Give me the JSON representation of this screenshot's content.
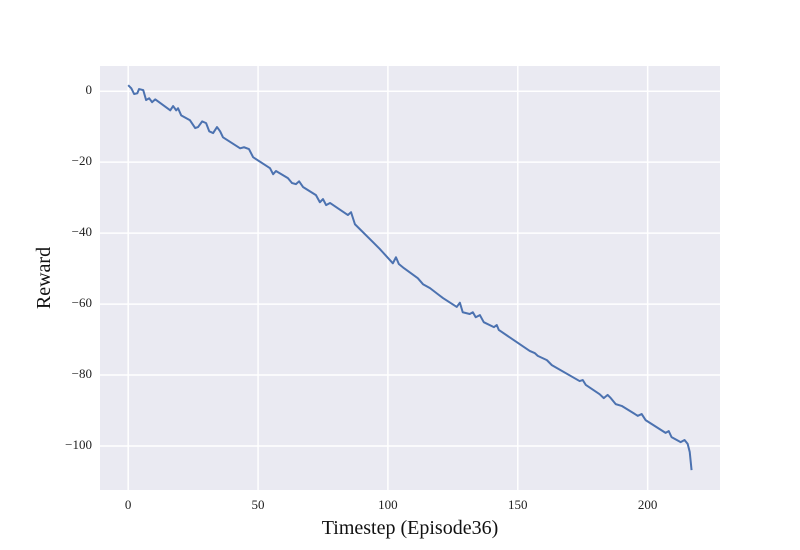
{
  "chart_data": {
    "type": "line",
    "xlabel": "Timestep (Episode36)",
    "ylabel": "Reward",
    "x": [
      0,
      1.2,
      2.3,
      3.5,
      4.2,
      5.8,
      6.9,
      8.1,
      9.2,
      10.4,
      16.2,
      17.3,
      18.5,
      19.2,
      20.4,
      23.8,
      25.8,
      26.9,
      28.5,
      30,
      31.2,
      32.7,
      34.2,
      35.4,
      36.5,
      43.1,
      44.6,
      46.5,
      48.1,
      54.6,
      55.8,
      56.9,
      61.5,
      63.1,
      64.6,
      65.8,
      67.3,
      72.3,
      73.8,
      75,
      76.2,
      77.7,
      84.6,
      85.8,
      87.3,
      94.6,
      96.9,
      101.9,
      103.1,
      104.2,
      106.2,
      111.5,
      113.5,
      116.2,
      119.2,
      121.2,
      126.5,
      127.7,
      128.8,
      131.5,
      132.7,
      133.8,
      135.4,
      136.9,
      140.8,
      141.9,
      142.7,
      154.6,
      156.5,
      157.7,
      161.2,
      163.1,
      173.8,
      175,
      176.2,
      181.5,
      183.1,
      184.6,
      185.8,
      187.7,
      190,
      196.2,
      197.7,
      199.2,
      206.9,
      208.1,
      209.2,
      212.7,
      214.2,
      215.4,
      216.2,
      216.9
    ],
    "series": [
      {
        "name": "Reward",
        "color": "#4c72b0",
        "values": [
          1.7,
          0.8,
          -0.8,
          -0.6,
          0.6,
          0.3,
          -2.5,
          -2,
          -3.1,
          -2.3,
          -5.4,
          -4.2,
          -5.4,
          -4.8,
          -6.8,
          -8.2,
          -10.4,
          -10.1,
          -8.5,
          -9,
          -11.3,
          -11.8,
          -10.1,
          -11.3,
          -13,
          -16.1,
          -15.8,
          -16.3,
          -18.6,
          -21.7,
          -23.4,
          -22.5,
          -24.5,
          -25.9,
          -26.2,
          -25.4,
          -27,
          -29.3,
          -31.3,
          -30.4,
          -32.1,
          -31.5,
          -34.9,
          -34.1,
          -37.5,
          -42.8,
          -44.5,
          -48.5,
          -46.8,
          -48.7,
          -49.9,
          -52.7,
          -54.4,
          -55.5,
          -57.2,
          -58.3,
          -60.8,
          -59.6,
          -62.3,
          -62.8,
          -62.3,
          -63.7,
          -63.1,
          -65.1,
          -66.5,
          -65.9,
          -67.3,
          -73.2,
          -73.8,
          -74.6,
          -75.8,
          -77.2,
          -81.7,
          -81.4,
          -82.8,
          -85.4,
          -86.5,
          -85.6,
          -86.5,
          -88.2,
          -88.7,
          -91.5,
          -91,
          -92.7,
          -96.3,
          -95.8,
          -97.5,
          -98.9,
          -98.3,
          -99.4,
          -101.7,
          -106.8
        ]
      }
    ],
    "xlim": [
      -10.85,
      227.85
    ],
    "xticks": [
      0,
      50,
      100,
      150,
      200
    ],
    "ylim": [
      -112.4,
      7.1
    ],
    "yticks": [
      0,
      {
        "value": -20,
        "label": "−20"
      },
      {
        "value": -40,
        "label": "−40"
      },
      {
        "value": -60,
        "label": "−60"
      },
      {
        "value": -80,
        "label": "−80"
      },
      {
        "value": -100,
        "label": "−100"
      }
    ],
    "grid": true,
    "background": "#eaeaf2"
  }
}
